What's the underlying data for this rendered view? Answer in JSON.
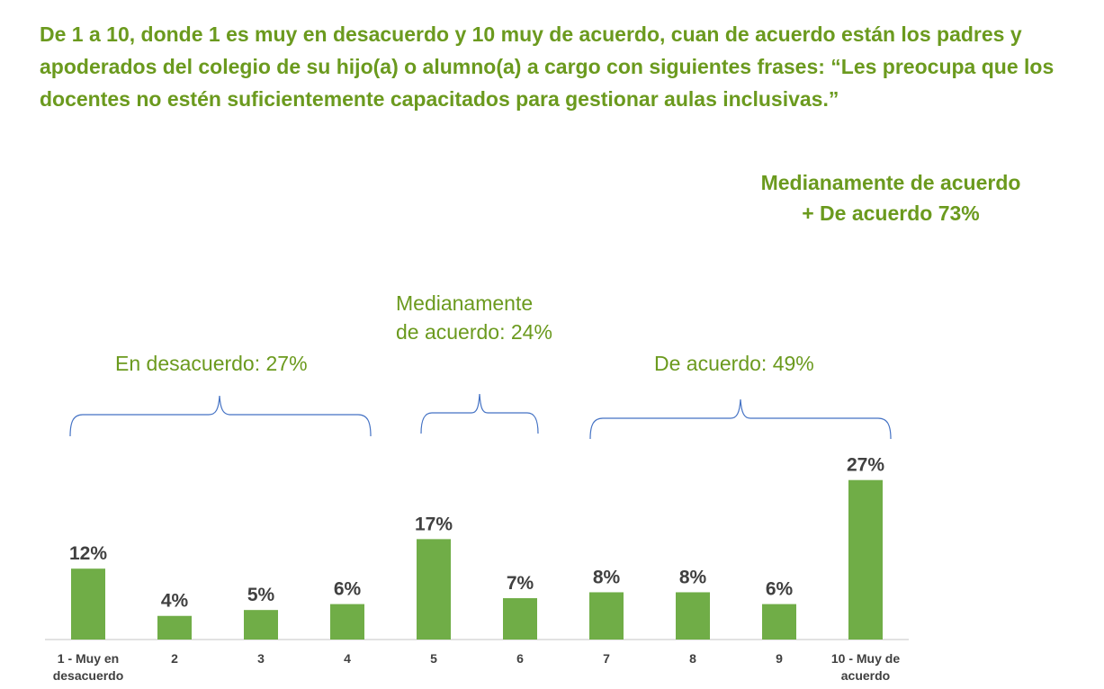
{
  "title": "De 1 a 10, donde 1 es muy en desacuerdo y 10 muy de acuerdo, cuan de acuerdo están los padres y apoderados del colegio de su hijo(a) o alumno(a) a cargo con siguientes frases: “Les preocupa que los docentes no estén suficientemente capacitados para gestionar aulas inclusivas.”",
  "summary": {
    "line1": "Medianamente de acuerdo",
    "line2": "+ De acuerdo 73%"
  },
  "groups": {
    "disagree": "En desacuerdo: 27%",
    "medium_line1": "Medianamente",
    "medium_line2": "de acuerdo: 24%",
    "agree": "De acuerdo: 49%"
  },
  "colors": {
    "bar": "#70ad47",
    "title": "#6b9a1e",
    "brace": "#4472c4"
  },
  "chart_data": {
    "type": "bar",
    "categories": [
      [
        "1 - Muy en",
        "desacuerdo"
      ],
      [
        "2"
      ],
      [
        "3"
      ],
      [
        "4"
      ],
      [
        "5"
      ],
      [
        "6"
      ],
      [
        "7"
      ],
      [
        "8"
      ],
      [
        "9"
      ],
      [
        "10 - Muy de",
        "acuerdo"
      ]
    ],
    "values": [
      12,
      4,
      5,
      6,
      17,
      7,
      8,
      8,
      6,
      27
    ],
    "data_labels": [
      "12%",
      "4%",
      "5%",
      "6%",
      "17%",
      "7%",
      "8%",
      "8%",
      "6%",
      "27%"
    ],
    "unit": "%",
    "ylim": [
      0,
      30
    ],
    "grid": false,
    "legend": "none"
  }
}
